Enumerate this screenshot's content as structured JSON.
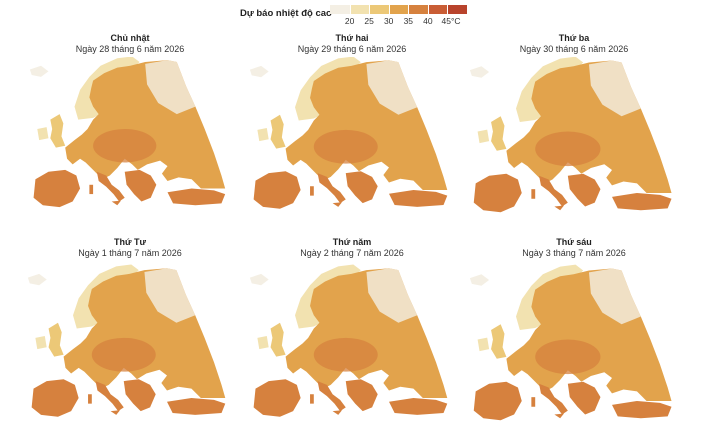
{
  "legend": {
    "title": "Dự báo nhiệt độ cao",
    "labels": [
      "20",
      "25",
      "30",
      "35",
      "40",
      "45°C"
    ],
    "colors": [
      "#f4efe4",
      "#f2e2b0",
      "#ecc877",
      "#e2a34c",
      "#d6813e",
      "#c95d35",
      "#b8432c"
    ]
  },
  "panels": [
    {
      "day": "Chủ nhật",
      "date": "Ngày 28 tháng 6 năm 2026",
      "level": 0.72
    },
    {
      "day": "Thứ hai",
      "date": "Ngày 29 tháng 6 năm 2026",
      "level": 0.74
    },
    {
      "day": "Thứ ba",
      "date": "Ngày 30 tháng 6 năm 2026",
      "level": 0.66
    },
    {
      "day": "Thứ Tư",
      "date": "Ngày 1 tháng 7 năm 2026",
      "level": 0.64
    },
    {
      "day": "Thứ năm",
      "date": "Ngày 2 tháng 7 năm 2026",
      "level": 0.62
    },
    {
      "day": "Thứ sáu",
      "date": "Ngày 3 tháng 7 năm 2026",
      "level": 0.6
    }
  ]
}
